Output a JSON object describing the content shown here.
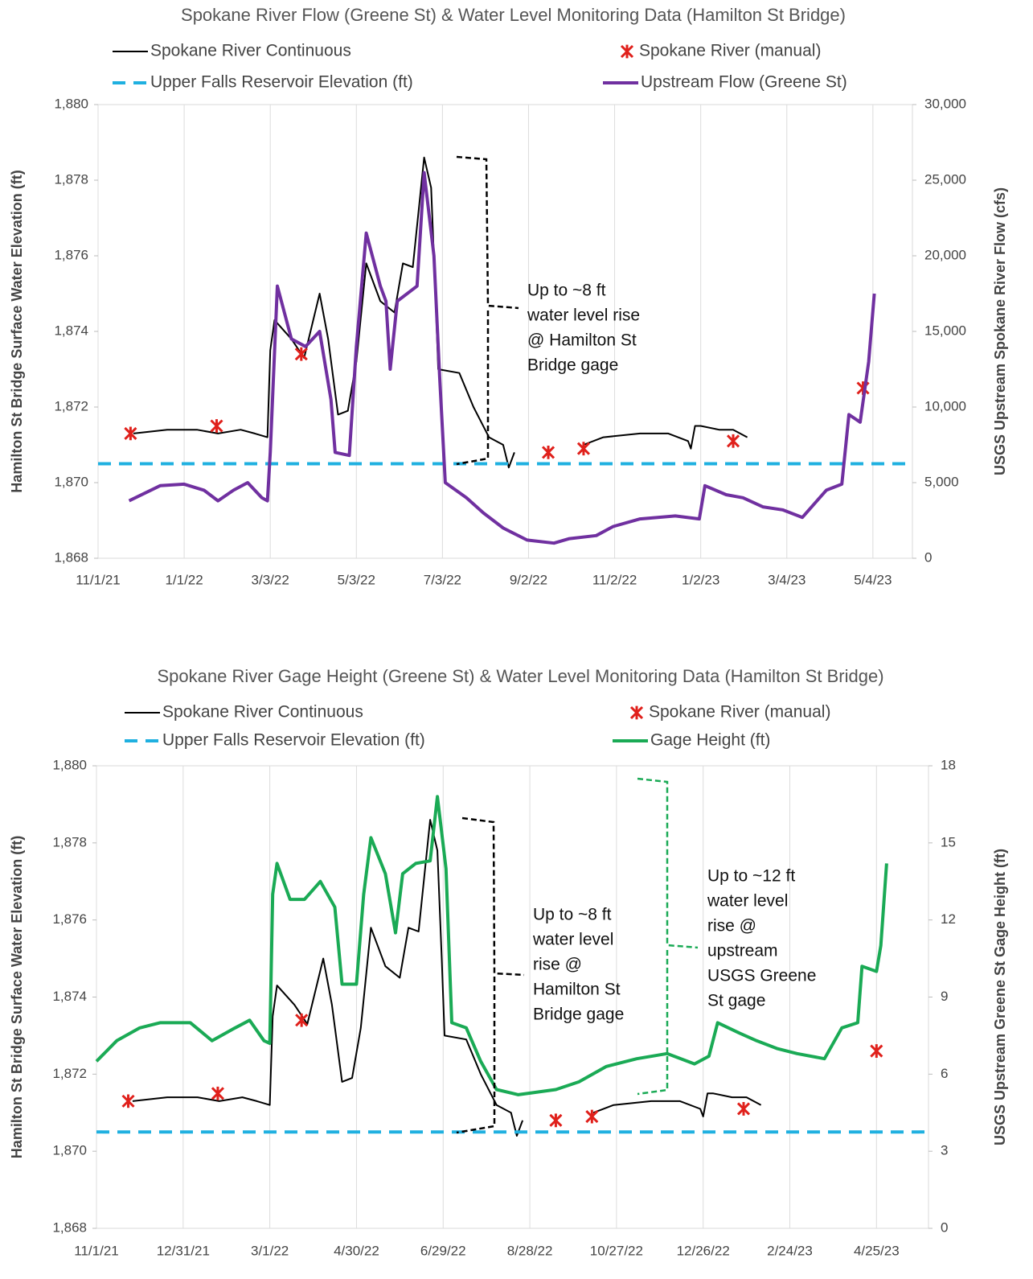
{
  "chart_data": [
    {
      "type": "line",
      "title": "Spokane River Flow (Greene St) & Water Level Monitoring Data (Hamilton St Bridge)",
      "ylabel": "Hamilton St Bridge Surface Water Elevation (ft)",
      "y2label": "USGS Upstream Spokane River Flow (cfs)",
      "xlim": [
        "2021-11-01",
        "2023-06-01"
      ],
      "xticks": [
        {
          "value": "2021-11-01",
          "label": "11/1/21"
        },
        {
          "value": "2022-01-01",
          "label": "1/1/22"
        },
        {
          "value": "2022-03-03",
          "label": "3/3/22"
        },
        {
          "value": "2022-05-03",
          "label": "5/3/22"
        },
        {
          "value": "2022-07-03",
          "label": "7/3/22"
        },
        {
          "value": "2022-09-02",
          "label": "9/2/22"
        },
        {
          "value": "2022-11-02",
          "label": "11/2/22"
        },
        {
          "value": "2023-01-02",
          "label": "1/2/23"
        },
        {
          "value": "2023-03-04",
          "label": "3/4/23"
        },
        {
          "value": "2023-05-04",
          "label": "5/4/23"
        }
      ],
      "ylim": [
        1868,
        1880
      ],
      "yticks": [
        {
          "value": 1868,
          "label": "1,868"
        },
        {
          "value": 1870,
          "label": "1,870"
        },
        {
          "value": 1872,
          "label": "1,872"
        },
        {
          "value": 1874,
          "label": "1,874"
        },
        {
          "value": 1876,
          "label": "1,876"
        },
        {
          "value": 1878,
          "label": "1,878"
        },
        {
          "value": 1880,
          "label": "1,880"
        }
      ],
      "y2lim": [
        0,
        30000
      ],
      "y2ticks": [
        0,
        {
          "value": 5000,
          "label": "5,000"
        },
        {
          "value": 10000,
          "label": "10,000"
        },
        {
          "value": 15000,
          "label": "15,000"
        },
        {
          "value": 20000,
          "label": "20,000"
        },
        {
          "value": 25000,
          "label": "25,000"
        },
        {
          "value": 30000,
          "label": "30,000"
        }
      ],
      "grid": "x",
      "series": [
        {
          "name": "Spokane River Continuous",
          "color": "#000000",
          "style": "line",
          "x": [
            "2021-11-26",
            "2021-12-20",
            "2022-01-10",
            "2022-01-25",
            "2022-02-10",
            "2022-02-20",
            "2022-03-01",
            "2022-03-03",
            "2022-03-06",
            "2022-03-18",
            "2022-03-27",
            "2022-04-07",
            "2022-04-13",
            "2022-04-20",
            "2022-04-27",
            "2022-05-03",
            "2022-05-10",
            "2022-05-20",
            "2022-05-30",
            "2022-06-05",
            "2022-06-12",
            "2022-06-20",
            "2022-06-25",
            "2022-06-28",
            "2022-06-30",
            "2022-07-15",
            "2022-07-25",
            "2022-08-05",
            "2022-08-15",
            "2022-08-19",
            "2022-08-23",
            "2022-09-15",
            "2022-10-11",
            "2022-10-25",
            "2022-11-20",
            "2022-12-10",
            "2022-12-24",
            "2022-12-26",
            "2022-12-29",
            "2023-01-02",
            "2023-01-15",
            "2023-01-25",
            "2023-02-04"
          ],
          "values": [
            1871.3,
            1871.4,
            1871.4,
            1871.3,
            1871.4,
            1871.3,
            1871.2,
            1873.5,
            1874.3,
            1873.8,
            1873.3,
            1875.0,
            1873.8,
            1871.8,
            1871.9,
            1873.2,
            1875.8,
            1874.8,
            1874.5,
            1875.8,
            1875.7,
            1878.6,
            1877.8,
            1875.0,
            1873.0,
            1872.9,
            1872.0,
            1871.2,
            1871.0,
            1870.4,
            1870.8,
            null,
            1871.0,
            1871.2,
            1871.3,
            1871.3,
            1871.1,
            1870.9,
            1871.5,
            1871.5,
            1871.4,
            1871.4,
            1871.2
          ]
        },
        {
          "name": "Spokane River (manual)",
          "color": "#e0201b",
          "style": "marker",
          "x": [
            "2021-11-24",
            "2022-01-24",
            "2022-03-25",
            "2022-09-16",
            "2022-10-11",
            "2023-01-25",
            "2023-04-27"
          ],
          "values": [
            1871.3,
            1871.5,
            1873.4,
            1870.8,
            1870.9,
            1871.1,
            1872.5
          ]
        },
        {
          "name": "Upper Falls Reservoir Elevation (ft)",
          "color": "#1fb0e0",
          "style": "dashed",
          "x": [
            "2021-11-01",
            "2023-06-01"
          ],
          "values": [
            1870.5,
            1870.5
          ]
        },
        {
          "name": "Upstream Flow (Greene St)",
          "color": "#7030a0",
          "style": "line",
          "axis": "y2",
          "x": [
            "2021-11-23",
            "2021-12-15",
            "2022-01-01",
            "2022-01-15",
            "2022-01-25",
            "2022-02-05",
            "2022-02-15",
            "2022-02-25",
            "2022-03-01",
            "2022-03-03",
            "2022-03-08",
            "2022-03-18",
            "2022-03-28",
            "2022-04-07",
            "2022-04-15",
            "2022-04-18",
            "2022-04-28",
            "2022-05-03",
            "2022-05-10",
            "2022-05-20",
            "2022-05-24",
            "2022-05-27",
            "2022-06-01",
            "2022-06-15",
            "2022-06-20",
            "2022-06-27",
            "2022-07-01",
            "2022-07-05",
            "2022-07-20",
            "2022-08-01",
            "2022-08-15",
            "2022-09-01",
            "2022-09-20",
            "2022-10-01",
            "2022-10-20",
            "2022-11-01",
            "2022-11-20",
            "2022-12-15",
            "2023-01-01",
            "2023-01-05",
            "2023-01-20",
            "2023-02-01",
            "2023-02-15",
            "2023-03-01",
            "2023-03-15",
            "2023-04-01",
            "2023-04-12",
            "2023-04-17",
            "2023-04-25",
            "2023-05-01",
            "2023-05-05"
          ],
          "values": [
            3800,
            4800,
            4900,
            4500,
            3800,
            4500,
            5000,
            4000,
            3800,
            7000,
            18000,
            14500,
            14000,
            15000,
            10500,
            7000,
            6800,
            14000,
            21500,
            18000,
            17000,
            12500,
            17000,
            18000,
            25500,
            20000,
            12000,
            5000,
            4000,
            3000,
            2000,
            1200,
            1000,
            1300,
            1500,
            2100,
            2600,
            2800,
            2600,
            4800,
            4200,
            4000,
            3400,
            3200,
            2700,
            4500,
            4900,
            9500,
            9000,
            13000,
            17500
          ]
        }
      ],
      "annotations": [
        {
          "text": [
            "Up to ~8 ft",
            "water level rise",
            "@ Hamilton St",
            "Bridge gage"
          ],
          "color": "#000000"
        }
      ]
    },
    {
      "type": "line",
      "title": "Spokane River Gage Height (Greene St) & Water Level Monitoring Data (Hamilton St Bridge)",
      "ylabel": "Hamilton St Bridge Surface Water Elevation (ft)",
      "y2label": "USGS Upstream Greene St Gage Height (ft)",
      "xlim": [
        "2021-11-01",
        "2023-05-31"
      ],
      "xticks": [
        {
          "value": "2021-11-01",
          "label": "11/1/21"
        },
        {
          "value": "2021-12-31",
          "label": "12/31/21"
        },
        {
          "value": "2022-03-01",
          "label": "3/1/22"
        },
        {
          "value": "2022-04-30",
          "label": "4/30/22"
        },
        {
          "value": "2022-06-29",
          "label": "6/29/22"
        },
        {
          "value": "2022-08-28",
          "label": "8/28/22"
        },
        {
          "value": "2022-10-27",
          "label": "10/27/22"
        },
        {
          "value": "2022-12-26",
          "label": "12/26/22"
        },
        {
          "value": "2023-02-24",
          "label": "2/24/23"
        },
        {
          "value": "2023-04-25",
          "label": "4/25/23"
        }
      ],
      "ylim": [
        1868,
        1880
      ],
      "yticks": [
        {
          "value": 1868,
          "label": "1,868"
        },
        {
          "value": 1870,
          "label": "1,870"
        },
        {
          "value": 1872,
          "label": "1,872"
        },
        {
          "value": 1874,
          "label": "1,874"
        },
        {
          "value": 1876,
          "label": "1,876"
        },
        {
          "value": 1878,
          "label": "1,878"
        },
        {
          "value": 1880,
          "label": "1,880"
        }
      ],
      "y2lim": [
        0,
        18
      ],
      "y2ticks": [
        0,
        3,
        6,
        9,
        12,
        15,
        18
      ],
      "grid": "x",
      "series": [
        {
          "name": "Spokane River Continuous",
          "color": "#000000",
          "style": "line",
          "x": [
            "2021-11-26",
            "2021-12-20",
            "2022-01-10",
            "2022-01-25",
            "2022-02-10",
            "2022-02-20",
            "2022-03-01",
            "2022-03-03",
            "2022-03-06",
            "2022-03-18",
            "2022-03-27",
            "2022-04-07",
            "2022-04-13",
            "2022-04-20",
            "2022-04-27",
            "2022-05-03",
            "2022-05-10",
            "2022-05-20",
            "2022-05-30",
            "2022-06-05",
            "2022-06-12",
            "2022-06-20",
            "2022-06-25",
            "2022-06-28",
            "2022-06-30",
            "2022-07-15",
            "2022-07-25",
            "2022-08-05",
            "2022-08-15",
            "2022-08-19",
            "2022-08-23",
            "2022-09-15",
            "2022-10-11",
            "2022-10-25",
            "2022-11-20",
            "2022-12-10",
            "2022-12-24",
            "2022-12-26",
            "2022-12-29",
            "2023-01-02",
            "2023-01-15",
            "2023-01-25",
            "2023-02-04"
          ],
          "values": [
            1871.3,
            1871.4,
            1871.4,
            1871.3,
            1871.4,
            1871.3,
            1871.2,
            1873.5,
            1874.3,
            1873.8,
            1873.3,
            1875.0,
            1873.8,
            1871.8,
            1871.9,
            1873.2,
            1875.8,
            1874.8,
            1874.5,
            1875.8,
            1875.7,
            1878.6,
            1877.8,
            1875.0,
            1873.0,
            1872.9,
            1872.0,
            1871.2,
            1871.0,
            1870.4,
            1870.8,
            null,
            1871.0,
            1871.2,
            1871.3,
            1871.3,
            1871.1,
            1870.9,
            1871.5,
            1871.5,
            1871.4,
            1871.4,
            1871.2
          ]
        },
        {
          "name": "Spokane River (manual)",
          "color": "#e0201b",
          "style": "marker",
          "x": [
            "2021-11-23",
            "2022-01-24",
            "2022-03-23",
            "2022-09-15",
            "2022-10-10",
            "2023-01-23",
            "2023-04-25"
          ],
          "values": [
            1871.3,
            1871.5,
            1873.4,
            1870.8,
            1870.9,
            1871.1,
            1872.6
          ]
        },
        {
          "name": "Upper Falls Reservoir Elevation (ft)",
          "color": "#1fb0e0",
          "style": "dashed",
          "x": [
            "2021-11-01",
            "2023-05-31"
          ],
          "values": [
            1870.5,
            1870.5
          ]
        },
        {
          "name": "Gage Height (ft)",
          "color": "#1aaa55",
          "style": "line",
          "axis": "y2",
          "x": [
            "2021-11-01",
            "2021-11-15",
            "2021-12-01",
            "2021-12-15",
            "2022-01-05",
            "2022-01-20",
            "2022-02-05",
            "2022-02-15",
            "2022-02-25",
            "2022-03-01",
            "2022-03-03",
            "2022-03-06",
            "2022-03-15",
            "2022-03-25",
            "2022-04-05",
            "2022-04-15",
            "2022-04-20",
            "2022-04-30",
            "2022-05-05",
            "2022-05-10",
            "2022-05-20",
            "2022-05-27",
            "2022-06-01",
            "2022-06-10",
            "2022-06-20",
            "2022-06-25",
            "2022-07-01",
            "2022-07-05",
            "2022-07-15",
            "2022-07-25",
            "2022-08-05",
            "2022-08-20",
            "2022-09-15",
            "2022-10-01",
            "2022-10-20",
            "2022-11-10",
            "2022-12-01",
            "2022-12-20",
            "2022-12-30",
            "2023-01-05",
            "2023-01-20",
            "2023-02-01",
            "2023-02-15",
            "2023-03-01",
            "2023-03-20",
            "2023-04-01",
            "2023-04-12",
            "2023-04-15",
            "2023-04-25",
            "2023-04-28",
            "2023-05-02"
          ],
          "values": [
            6.5,
            7.3,
            7.8,
            8.0,
            8.0,
            7.3,
            7.8,
            8.1,
            7.3,
            7.2,
            13.0,
            14.2,
            12.8,
            12.8,
            13.5,
            12.5,
            9.5,
            9.5,
            13.0,
            15.2,
            13.8,
            11.5,
            13.8,
            14.2,
            14.3,
            16.8,
            14.0,
            8.0,
            7.8,
            6.5,
            5.4,
            5.2,
            5.4,
            5.7,
            6.3,
            6.6,
            6.8,
            6.4,
            6.7,
            8.0,
            7.6,
            7.3,
            7.0,
            6.8,
            6.6,
            7.8,
            8.0,
            10.2,
            10.0,
            11.0,
            14.2
          ]
        }
      ],
      "annotations": [
        {
          "text": [
            "Up to ~8 ft",
            "water level",
            "rise @",
            "Hamilton St",
            "Bridge gage"
          ],
          "color": "#000000"
        },
        {
          "text": [
            "Up to ~12 ft",
            "water level",
            "rise @",
            "upstream",
            "USGS Greene",
            "St gage"
          ],
          "color": "#1aaa55"
        }
      ]
    }
  ]
}
